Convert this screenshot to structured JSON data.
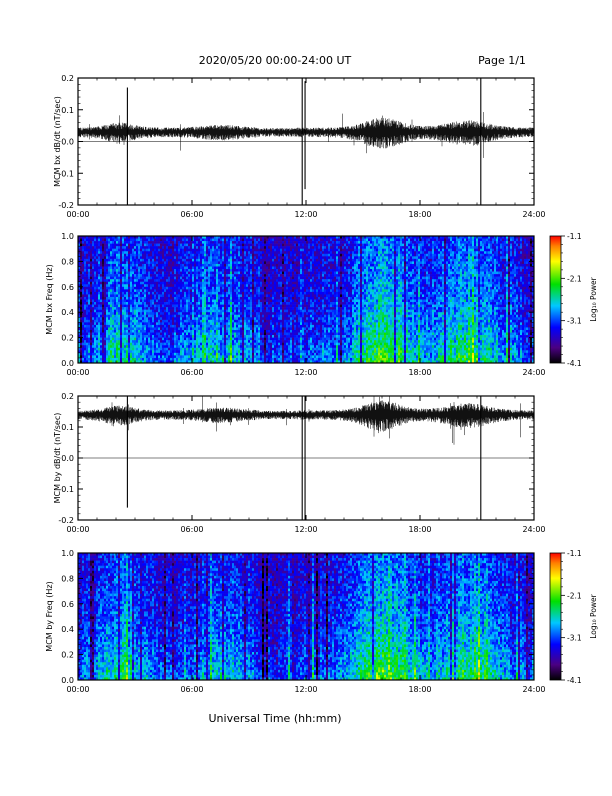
{
  "header": {
    "title": "2020/05/20  00:00-24:00 UT",
    "page": "Page 1/1"
  },
  "x_axis_label": "Universal Time (hh:mm)",
  "colorbar": {
    "label": "Log₁₀ Power",
    "ticks": [
      "-1.1",
      "-2.1",
      "-3.1",
      "-4.1"
    ],
    "range": [
      -4.1,
      -1.1
    ]
  },
  "chart_data": [
    {
      "type": "line",
      "ylabel": "MCM bx dB/dt (nT/sec)",
      "xlim": [
        0,
        24
      ],
      "ylim": [
        -0.2,
        0.2
      ],
      "x_ticks": [
        "00:00",
        "06:00",
        "12:00",
        "18:00",
        "24:00"
      ],
      "y_ticks": [
        "0.2",
        "0.1",
        "0.0",
        "-0.1",
        "-0.2"
      ],
      "baseline": 0.03,
      "spikes": [
        {
          "x": 2.6,
          "min": -0.2,
          "max": 0.17
        },
        {
          "x": 11.8,
          "min": -0.2,
          "max": 0.2
        },
        {
          "x": 11.95,
          "min": -0.15,
          "max": 0.19
        },
        {
          "x": 21.2,
          "min": -0.2,
          "max": 0.2
        }
      ]
    },
    {
      "type": "heatmap",
      "ylabel": "MCM bx Freq (Hz)",
      "xlim": [
        0,
        24
      ],
      "ylim": [
        0,
        1.0
      ],
      "x_ticks": [
        "00:00",
        "06:00",
        "12:00",
        "18:00",
        "24:00"
      ],
      "y_ticks": [
        "1.0",
        "0.8",
        "0.6",
        "0.4",
        "0.2",
        "0.0"
      ],
      "zlim": [
        -4.1,
        -1.1
      ]
    },
    {
      "type": "line",
      "ylabel": "MCM by dB/dt (nT/sec)",
      "xlim": [
        0,
        24
      ],
      "ylim": [
        -0.2,
        0.2
      ],
      "x_ticks": [
        "00:00",
        "06:00",
        "12:00",
        "18:00",
        "24:00"
      ],
      "y_ticks": [
        "0.2",
        "0.1",
        "0.0",
        "-0.1",
        "-0.2"
      ],
      "baseline": 0.14,
      "spikes": [
        {
          "x": 2.6,
          "min": -0.16,
          "max": 0.2
        },
        {
          "x": 11.8,
          "min": -0.2,
          "max": 0.2
        },
        {
          "x": 11.95,
          "min": -0.2,
          "max": 0.2
        },
        {
          "x": 21.2,
          "min": -0.2,
          "max": 0.2
        }
      ]
    },
    {
      "type": "heatmap",
      "ylabel": "MCM by Freq (Hz)",
      "xlim": [
        0,
        24
      ],
      "ylim": [
        0,
        1.0
      ],
      "x_ticks": [
        "00:00",
        "06:00",
        "12:00",
        "18:00",
        "24:00"
      ],
      "y_ticks": [
        "1.0",
        "0.8",
        "0.6",
        "0.4",
        "0.2",
        "0.0"
      ],
      "zlim": [
        -4.1,
        -1.1
      ]
    }
  ]
}
